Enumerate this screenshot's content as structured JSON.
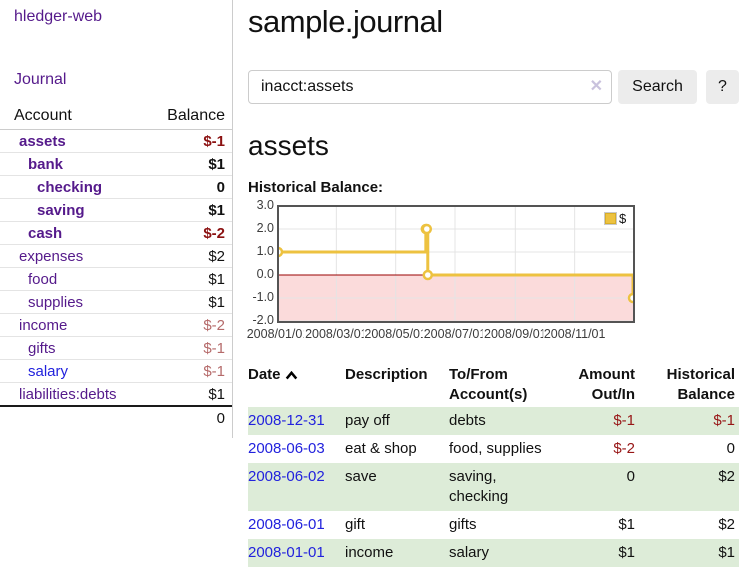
{
  "app": {
    "title": "hledger-web"
  },
  "sidebar": {
    "nav": {
      "journal_label": "Journal"
    },
    "table": {
      "account_header": "Account",
      "balance_header": "Balance"
    },
    "accounts": [
      {
        "name": "assets",
        "indent": 1,
        "bold": true,
        "balance": "$-1",
        "balance_style": "neg-strong"
      },
      {
        "name": "bank",
        "indent": 2,
        "bold": true,
        "balance": "$1",
        "balance_style": "bold"
      },
      {
        "name": "checking",
        "indent": 3,
        "bold": true,
        "balance": "0",
        "balance_style": "bold"
      },
      {
        "name": "saving",
        "indent": 3,
        "bold": true,
        "balance": "$1",
        "balance_style": "bold"
      },
      {
        "name": "cash",
        "indent": 2,
        "bold": true,
        "balance": "$-2",
        "balance_style": "neg-strong"
      },
      {
        "name": "expenses",
        "indent": 1,
        "bold": false,
        "balance": "$2",
        "balance_style": "plain"
      },
      {
        "name": "food",
        "indent": 2,
        "bold": false,
        "balance": "$1",
        "balance_style": "plain"
      },
      {
        "name": "supplies",
        "indent": 2,
        "bold": false,
        "balance": "$1",
        "balance_style": "plain"
      },
      {
        "name": "income",
        "indent": 1,
        "bold": false,
        "balance": "$-2",
        "balance_style": "neg-soft"
      },
      {
        "name": "gifts",
        "indent": 2,
        "bold": false,
        "balance": "$-1",
        "balance_style": "neg-soft"
      },
      {
        "name": "salary",
        "indent": 2,
        "bold": false,
        "balance": "$-1",
        "balance_style": "neg-soft",
        "link_color": "blue"
      },
      {
        "name": "liabilities:debts",
        "indent": 1,
        "bold": false,
        "balance": "$1",
        "balance_style": "plain"
      }
    ],
    "total": "0"
  },
  "header": {
    "title": "sample.journal"
  },
  "search": {
    "query": "inacct:assets",
    "clear_icon": "✕",
    "button_label": "Search",
    "help_label": "?"
  },
  "main": {
    "account_heading": "assets",
    "chart_title": "Historical Balance:"
  },
  "chart_data": {
    "type": "line",
    "step": true,
    "title": "Historical Balance:",
    "series": [
      {
        "name": "$",
        "color": "#edc240",
        "points": [
          {
            "date": "2008-01-01",
            "day": 0,
            "value": 1
          },
          {
            "date": "2008-06-01",
            "day": 152,
            "value": 2
          },
          {
            "date": "2008-06-02",
            "day": 153,
            "value": 2
          },
          {
            "date": "2008-06-03",
            "day": 154,
            "value": 0
          },
          {
            "date": "2008-12-31",
            "day": 365,
            "value": -1
          }
        ]
      }
    ],
    "x_axis": {
      "range_days": 365,
      "ticks": [
        {
          "label": "2008/01/01",
          "day": 0
        },
        {
          "label": "2008/03/01",
          "day": 60
        },
        {
          "label": "2008/05/01",
          "day": 121
        },
        {
          "label": "2008/07/01",
          "day": 182
        },
        {
          "label": "2008/09/01",
          "day": 244
        },
        {
          "label": "2008/11/01",
          "day": 305
        }
      ]
    },
    "y_axis": {
      "min": -2,
      "max": 3,
      "ticks": [
        {
          "label": "3.0",
          "value": 3
        },
        {
          "label": "2.0",
          "value": 2
        },
        {
          "label": "1.0",
          "value": 1
        },
        {
          "label": "0.0",
          "value": 0
        },
        {
          "label": "-1.0",
          "value": -1
        },
        {
          "label": "-2.0",
          "value": -2
        }
      ]
    },
    "legend": {
      "position": "top-right",
      "entries": [
        {
          "label": "$",
          "color": "#edc240"
        }
      ]
    },
    "styles": {
      "negative_region_fill": "#fbdbdb",
      "zero_line_color": "#990000",
      "grid_color": "#e4e4e4",
      "border_color": "#545454",
      "marker_fill": "#ffffff"
    }
  },
  "register": {
    "columns": [
      {
        "label": "Date",
        "sorted": "asc"
      },
      {
        "label": "Description"
      },
      {
        "label": "To/From Account(s)"
      },
      {
        "label": "Amount Out/In"
      },
      {
        "label": "Historical Balance"
      }
    ],
    "rows": [
      {
        "date": "2008-12-31",
        "description": "pay off",
        "accounts": "debts",
        "amount": "$-1",
        "amount_negative": true,
        "balance": "$-1",
        "balance_negative": true
      },
      {
        "date": "2008-06-03",
        "description": "eat & shop",
        "accounts": "food, supplies",
        "amount": "$-2",
        "amount_negative": true,
        "balance": "0",
        "balance_negative": false
      },
      {
        "date": "2008-06-02",
        "description": "save",
        "accounts": "saving, checking",
        "amount": "0",
        "amount_negative": false,
        "balance": "$2",
        "balance_negative": false
      },
      {
        "date": "2008-06-01",
        "description": "gift",
        "accounts": "gifts",
        "amount": "$1",
        "amount_negative": false,
        "balance": "$2",
        "balance_negative": false
      },
      {
        "date": "2008-01-01",
        "description": "income",
        "accounts": "salary",
        "amount": "$1",
        "amount_negative": false,
        "balance": "$1",
        "balance_negative": false
      }
    ]
  }
}
